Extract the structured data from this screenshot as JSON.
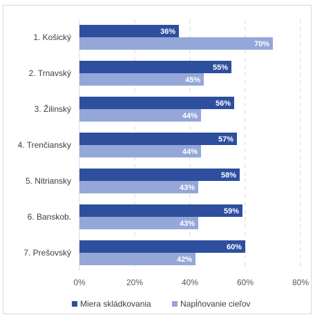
{
  "chart_data": {
    "type": "bar",
    "orientation": "horizontal",
    "categories": [
      "1. Košický",
      "2. Trnavský",
      "3. Žilinský",
      "4. Trenčiansky",
      "5. Nitriansky",
      "6. Banskob.",
      "7. Prešovský"
    ],
    "series": [
      {
        "name": "Miera skládkovania",
        "values": [
          36,
          55,
          56,
          57,
          58,
          59,
          60
        ],
        "color": "#2e4f9e",
        "labels": [
          "36%",
          "55%",
          "56%",
          "57%",
          "58%",
          "59%",
          "60%"
        ]
      },
      {
        "name": "Napĺňovanie cieľov",
        "values": [
          70,
          45,
          44,
          44,
          43,
          43,
          42
        ],
        "color": "#95a7d8",
        "labels": [
          "70%",
          "45%",
          "44%",
          "44%",
          "43%",
          "43%",
          "42%"
        ]
      }
    ],
    "xlim": [
      0,
      80
    ],
    "xticks": [
      "0%",
      "20%",
      "40%",
      "60%",
      "80%"
    ],
    "grid": "vertical dashed",
    "legend": "bottom",
    "title": "",
    "xlabel": "",
    "ylabel": ""
  }
}
